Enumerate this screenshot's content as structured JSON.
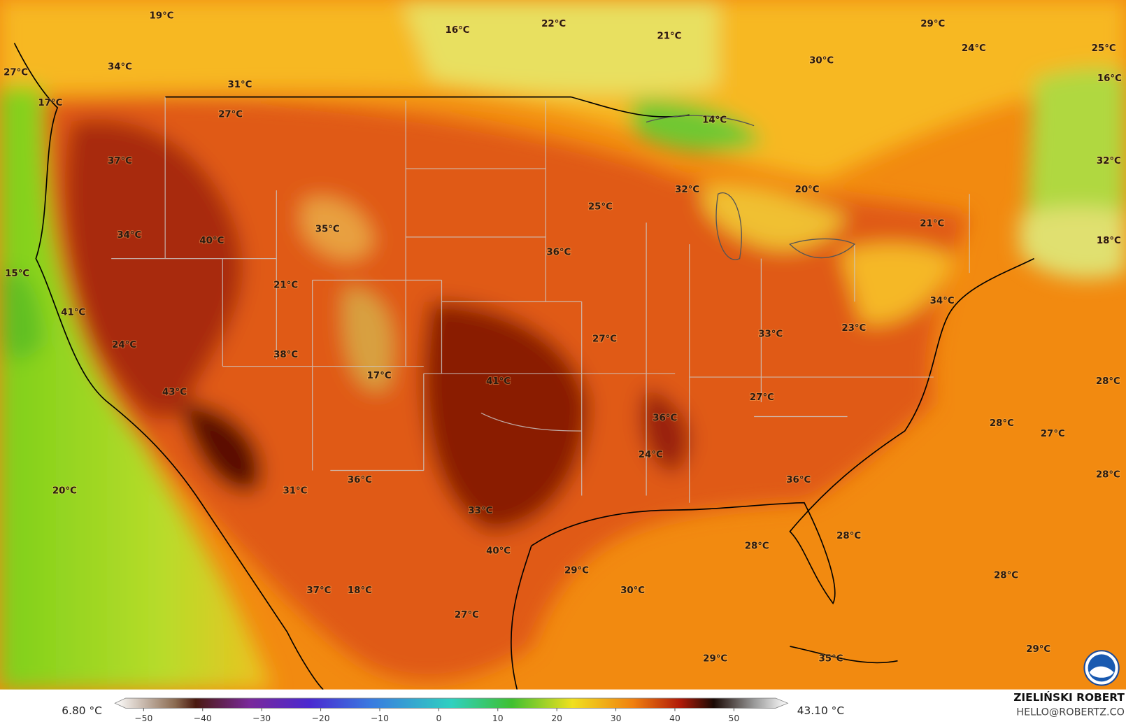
{
  "map": {
    "labels": [
      "19°C",
      "16°C",
      "22°C",
      "21°C",
      "29°C",
      "24°C",
      "25°C",
      "27°C",
      "34°C",
      "31°C",
      "30°C",
      "16°C",
      "17°C",
      "27°C",
      "14°C",
      "37°C",
      "32°C",
      "32°C",
      "20°C",
      "25°C",
      "35°C",
      "21°C",
      "34°C",
      "40°C",
      "18°C",
      "36°C",
      "15°C",
      "21°C",
      "34°C",
      "41°C",
      "23°C",
      "33°C",
      "27°C",
      "24°C",
      "38°C",
      "17°C",
      "41°C",
      "28°C",
      "43°C",
      "27°C",
      "36°C",
      "28°C",
      "27°C",
      "24°C",
      "28°C",
      "36°C",
      "36°C",
      "20°C",
      "31°C",
      "33°C",
      "28°C",
      "28°C",
      "40°C",
      "29°C",
      "28°C",
      "30°C",
      "37°C",
      "18°C",
      "27°C",
      "35°C",
      "29°C",
      "29°C"
    ]
  },
  "colorbar": {
    "min_label": "6.80 °C",
    "max_label": "43.10 °C",
    "ticks": [
      {
        "value": -50,
        "label": "−50"
      },
      {
        "value": -40,
        "label": "−40"
      },
      {
        "value": -30,
        "label": "−30"
      },
      {
        "value": -20,
        "label": "−20"
      },
      {
        "value": -10,
        "label": "−10"
      },
      0,
      10,
      20,
      30,
      40,
      50
    ]
  },
  "credit": {
    "name": "ZIELIŃSKI ROBERT",
    "email": "HELLO@ROBERTZ.CO"
  }
}
